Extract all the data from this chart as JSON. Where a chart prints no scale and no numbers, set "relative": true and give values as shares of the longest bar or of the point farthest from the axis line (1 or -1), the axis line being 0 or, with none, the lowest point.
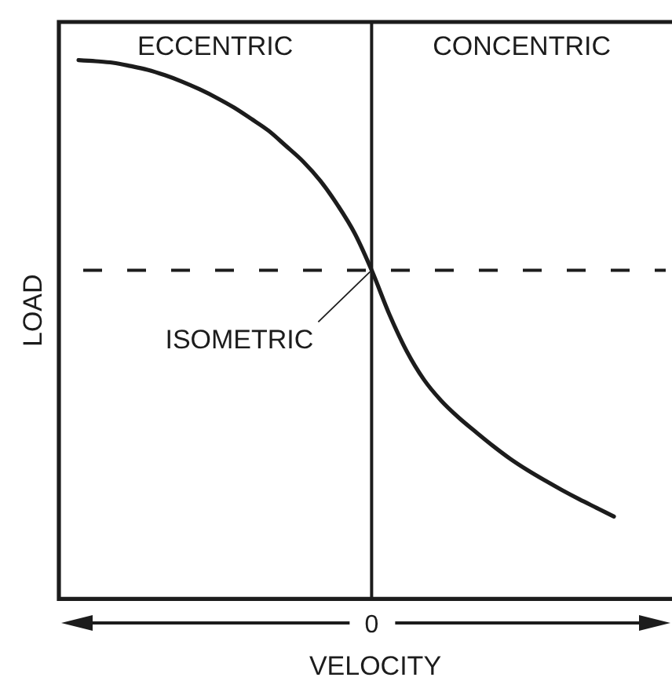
{
  "chart_data": {
    "type": "line",
    "relative": true,
    "xlabel": "VELOCITY",
    "ylabel": "LOAD",
    "categories": [
      null,
      null,
      null,
      null,
      null,
      null,
      null,
      null,
      null,
      null,
      null,
      null,
      null,
      null,
      null,
      null,
      null,
      null,
      null,
      null,
      null,
      null,
      null,
      null,
      null,
      null,
      null,
      null,
      null,
      null,
      null,
      null
    ],
    "series": [
      {
        "color": "#1c1c1c",
        "values": [
          1.0,
          0.998,
          0.995,
          0.989,
          0.982,
          0.972,
          0.96,
          0.946,
          0.93,
          0.912,
          0.891,
          0.869,
          0.841,
          0.812,
          0.776,
          0.731,
          0.678,
          0.608,
          0.528,
          0.46,
          0.407,
          0.368,
          0.337,
          0.31,
          0.284,
          0.26,
          0.239,
          0.22,
          0.202,
          0.185,
          0.169,
          0.153
        ]
      }
    ],
    "ref_lines": [
      {
        "axis": "y",
        "value": 0.61,
        "line_style": "dashed",
        "label": "ISOMETRIC"
      }
    ],
    "annotations": [
      "ECCENTRIC",
      "CONCENTRIC",
      "0"
    ]
  }
}
